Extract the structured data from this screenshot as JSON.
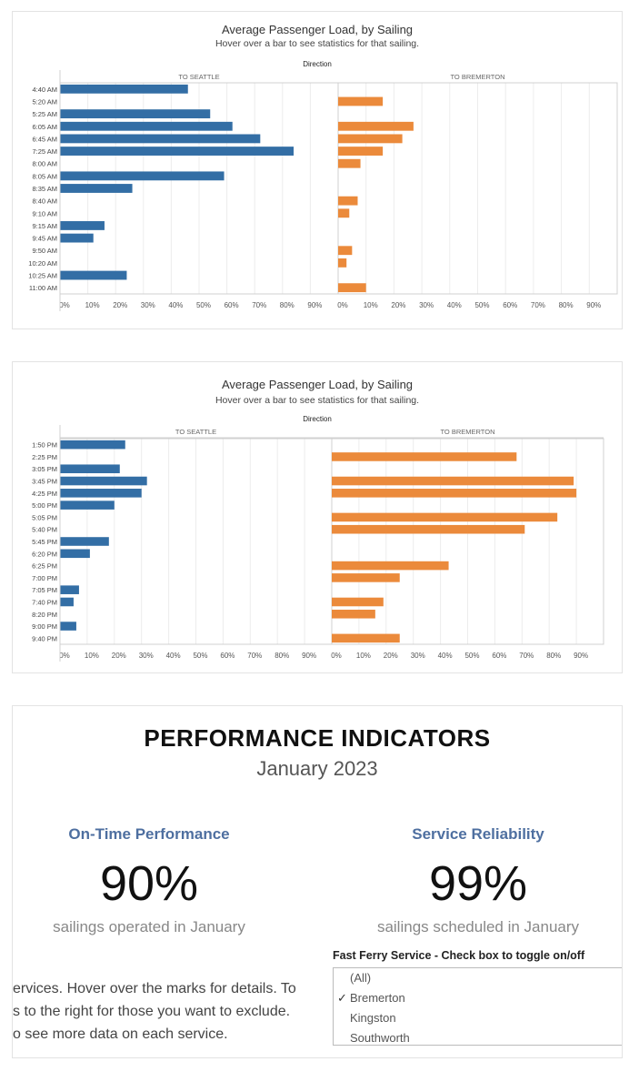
{
  "colors": {
    "seattle": "#336ea5",
    "bremerton": "#eb8a3b",
    "grid": "#ececec",
    "axis": "#d0d0d0",
    "text": "#555555"
  },
  "chart_data": [
    {
      "type": "bar",
      "title": "Average Passenger Load, by Sailing",
      "subtitle": "Hover over a bar to see statistics for that sailing.",
      "facet_label": "Direction",
      "orientation": "horizontal",
      "categories": [
        "4:40 AM",
        "5:20 AM",
        "5:25 AM",
        "6:05 AM",
        "6:45 AM",
        "7:25 AM",
        "8:00 AM",
        "8:05 AM",
        "8:35 AM",
        "8:40 AM",
        "9:10 AM",
        "9:15 AM",
        "9:45 AM",
        "9:50 AM",
        "10:20 AM",
        "10:25 AM",
        "11:00 AM"
      ],
      "series": [
        {
          "name": "TO SEATTLE",
          "values": [
            46,
            null,
            54,
            62,
            72,
            84,
            null,
            59,
            26,
            null,
            null,
            16,
            12,
            null,
            null,
            24,
            null
          ]
        },
        {
          "name": "TO BREMERTON",
          "values": [
            null,
            16,
            null,
            27,
            23,
            16,
            8,
            null,
            null,
            7,
            4,
            null,
            null,
            5,
            3,
            null,
            10
          ]
        }
      ],
      "xlim": [
        0,
        100
      ],
      "tick_labels": [
        "0%",
        "10%",
        "20%",
        "30%",
        "40%",
        "50%",
        "60%",
        "70%",
        "80%",
        "90%"
      ]
    },
    {
      "type": "bar",
      "title": "Average Passenger Load, by Sailing",
      "subtitle": "Hover over a bar to see statistics for that sailing.",
      "facet_label": "Direction",
      "orientation": "horizontal",
      "categories": [
        "1:50 PM",
        "2:25 PM",
        "3:05 PM",
        "3:45 PM",
        "4:25 PM",
        "5:00 PM",
        "5:05 PM",
        "5:40 PM",
        "5:45 PM",
        "6:20 PM",
        "6:25 PM",
        "7:00 PM",
        "7:05 PM",
        "7:40 PM",
        "8:20 PM",
        "9:00 PM",
        "9:40 PM"
      ],
      "series": [
        {
          "name": "TO SEATTLE",
          "values": [
            24,
            null,
            22,
            32,
            30,
            20,
            null,
            null,
            18,
            11,
            null,
            null,
            7,
            5,
            null,
            6,
            null
          ]
        },
        {
          "name": "TO BREMERTON",
          "values": [
            null,
            68,
            null,
            89,
            90,
            null,
            83,
            71,
            null,
            null,
            43,
            25,
            null,
            19,
            16,
            null,
            25
          ]
        }
      ],
      "xlim": [
        0,
        100
      ],
      "tick_labels": [
        "0%",
        "10%",
        "20%",
        "30%",
        "40%",
        "50%",
        "60%",
        "70%",
        "80%",
        "90%"
      ]
    }
  ],
  "performance": {
    "title": "PERFORMANCE INDICATORS",
    "month": "January 2023",
    "kpis": [
      {
        "label": "On-Time Performance",
        "value": "90%",
        "desc": "sailings operated in January"
      },
      {
        "label": "Service Reliability",
        "value": "99%",
        "desc": "sailings scheduled in January"
      }
    ],
    "description_lines": [
      "ervices. Hover over the marks for details. To",
      "s to the right for those you want to exclude.",
      "o see more data on each service."
    ],
    "filter": {
      "title": "Fast Ferry Service - Check box to toggle on/off",
      "options": [
        {
          "label": "(All)",
          "checked": false
        },
        {
          "label": "Bremerton",
          "checked": true
        },
        {
          "label": "Kingston",
          "checked": false
        },
        {
          "label": "Southworth",
          "checked": false
        }
      ]
    }
  }
}
